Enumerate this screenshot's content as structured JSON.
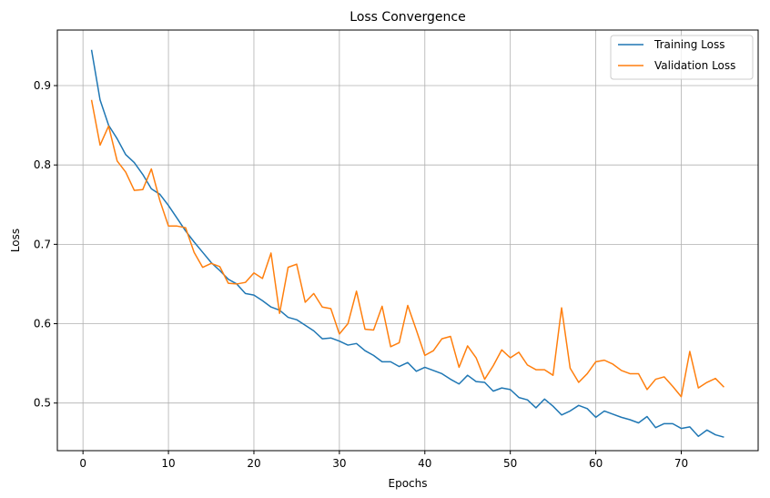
{
  "chart_data": {
    "type": "line",
    "title": "Loss Convergence",
    "xlabel": "Epochs",
    "ylabel": "Loss",
    "xlim": [
      -3,
      79
    ],
    "ylim": [
      0.44,
      0.97
    ],
    "xticks": [
      0,
      10,
      20,
      30,
      40,
      50,
      60,
      70
    ],
    "yticks": [
      0.5,
      0.6,
      0.7,
      0.8,
      0.9
    ],
    "grid": true,
    "legend_position": "top-right",
    "x": [
      1,
      2,
      3,
      4,
      5,
      6,
      7,
      8,
      9,
      10,
      11,
      12,
      13,
      14,
      15,
      16,
      17,
      18,
      19,
      20,
      21,
      22,
      23,
      24,
      25,
      26,
      27,
      28,
      29,
      30,
      31,
      32,
      33,
      34,
      35,
      36,
      37,
      38,
      39,
      40,
      41,
      42,
      43,
      44,
      45,
      46,
      47,
      48,
      49,
      50,
      51,
      52,
      53,
      54,
      55,
      56,
      57,
      58,
      59,
      60,
      61,
      62,
      63,
      64,
      65,
      66,
      67,
      68,
      69,
      70,
      71,
      72,
      73,
      74,
      75
    ],
    "series": [
      {
        "name": "Training Loss",
        "color": "#1f77b4",
        "values": [
          0.945,
          0.882,
          0.85,
          0.833,
          0.813,
          0.803,
          0.788,
          0.77,
          0.763,
          0.749,
          0.733,
          0.717,
          0.703,
          0.69,
          0.677,
          0.667,
          0.656,
          0.65,
          0.638,
          0.636,
          0.629,
          0.621,
          0.617,
          0.608,
          0.605,
          0.598,
          0.591,
          0.581,
          0.582,
          0.578,
          0.573,
          0.575,
          0.566,
          0.56,
          0.552,
          0.552,
          0.546,
          0.551,
          0.54,
          0.545,
          0.541,
          0.537,
          0.53,
          0.524,
          0.535,
          0.527,
          0.526,
          0.515,
          0.519,
          0.517,
          0.507,
          0.504,
          0.494,
          0.505,
          0.496,
          0.485,
          0.49,
          0.497,
          0.493,
          0.482,
          0.49,
          0.486,
          0.482,
          0.479,
          0.475,
          0.483,
          0.469,
          0.474,
          0.474,
          0.468,
          0.47,
          0.458,
          0.466,
          0.46,
          0.457
        ]
      },
      {
        "name": "Validation Loss",
        "color": "#ff7f0e",
        "values": [
          0.882,
          0.825,
          0.849,
          0.805,
          0.791,
          0.768,
          0.769,
          0.795,
          0.755,
          0.723,
          0.723,
          0.721,
          0.69,
          0.671,
          0.676,
          0.672,
          0.651,
          0.65,
          0.652,
          0.664,
          0.657,
          0.689,
          0.613,
          0.671,
          0.675,
          0.627,
          0.638,
          0.621,
          0.619,
          0.587,
          0.6,
          0.641,
          0.593,
          0.592,
          0.622,
          0.571,
          0.576,
          0.623,
          0.592,
          0.56,
          0.566,
          0.581,
          0.584,
          0.545,
          0.572,
          0.557,
          0.53,
          0.547,
          0.567,
          0.557,
          0.564,
          0.548,
          0.542,
          0.542,
          0.535,
          0.62,
          0.544,
          0.526,
          0.537,
          0.552,
          0.554,
          0.549,
          0.541,
          0.537,
          0.537,
          0.517,
          0.53,
          0.533,
          0.521,
          0.508,
          0.565,
          0.519,
          0.526,
          0.531,
          0.52
        ]
      }
    ]
  }
}
